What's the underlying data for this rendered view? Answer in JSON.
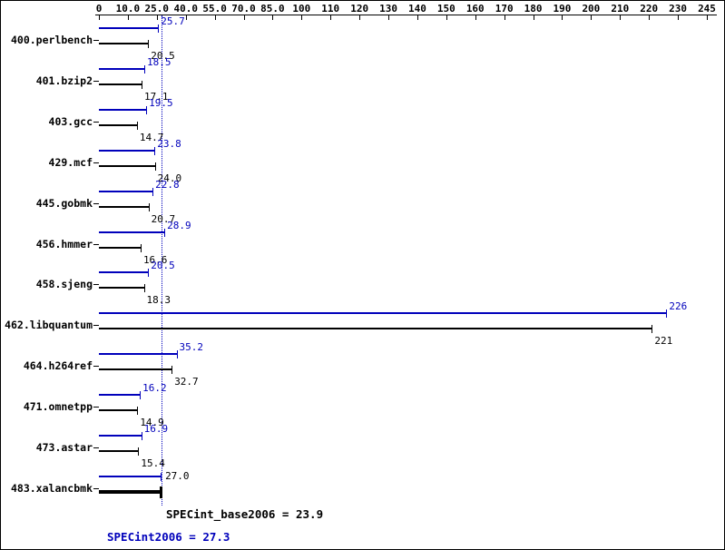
{
  "chart_data": {
    "type": "bar",
    "orientation": "horizontal",
    "title": "",
    "colors": {
      "peak": "#0000bb",
      "base": "#000000"
    },
    "axis": {
      "position": "top",
      "tick_labels": [
        "0",
        "10.0",
        "25.0",
        "40.0",
        "55.0",
        "70.0",
        "85.0",
        "100",
        "110",
        "120",
        "130",
        "140",
        "150",
        "160",
        "170",
        "180",
        "190",
        "200",
        "210",
        "220",
        "230",
        "245"
      ],
      "tick_values": [
        0,
        10,
        25,
        40,
        55,
        70,
        85,
        100,
        110,
        120,
        130,
        140,
        150,
        160,
        170,
        180,
        190,
        200,
        210,
        220,
        230,
        245
      ]
    },
    "rows": [
      {
        "name": "400.perlbench",
        "peak": 25.7,
        "peak_label": "25.7",
        "base": 20.5,
        "base_label": "20.5"
      },
      {
        "name": "401.bzip2",
        "peak": 18.5,
        "peak_label": "18.5",
        "base": 17.1,
        "base_label": "17.1"
      },
      {
        "name": "403.gcc",
        "peak": 19.5,
        "peak_label": "19.5",
        "base": 14.7,
        "base_label": "14.7"
      },
      {
        "name": "429.mcf",
        "peak": 23.8,
        "peak_label": "23.8",
        "base": 24.0,
        "base_label": "24.0"
      },
      {
        "name": "445.gobmk",
        "peak": 22.8,
        "peak_label": "22.8",
        "base": 20.7,
        "base_label": "20.7"
      },
      {
        "name": "456.hmmer",
        "peak": 28.9,
        "peak_label": "28.9",
        "base": 16.6,
        "base_label": "16.6"
      },
      {
        "name": "458.sjeng",
        "peak": 20.5,
        "peak_label": "20.5",
        "base": 18.3,
        "base_label": "18.3"
      },
      {
        "name": "462.libquantum",
        "peak": 226,
        "peak_label": "226",
        "base": 221,
        "base_label": "221"
      },
      {
        "name": "464.h264ref",
        "peak": 35.2,
        "peak_label": "35.2",
        "base": 32.7,
        "base_label": "32.7"
      },
      {
        "name": "471.omnetpp",
        "peak": 16.2,
        "peak_label": "16.2",
        "base": 14.9,
        "base_label": "14.9"
      },
      {
        "name": "473.astar",
        "peak": 16.9,
        "peak_label": "16.9",
        "base": 15.4,
        "base_label": "15.4"
      },
      {
        "name": "483.xalancbmk",
        "peak": 27.0,
        "peak_label": "",
        "base": 27.0,
        "base_label": "27.0",
        "bold": true
      }
    ],
    "reference_line": {
      "value": 27.3,
      "style": "dotted",
      "color": "#0000bb"
    },
    "annotations": {
      "base": "SPECint_base2006 = 23.9",
      "peak": "SPECint2006 = 27.3"
    }
  }
}
